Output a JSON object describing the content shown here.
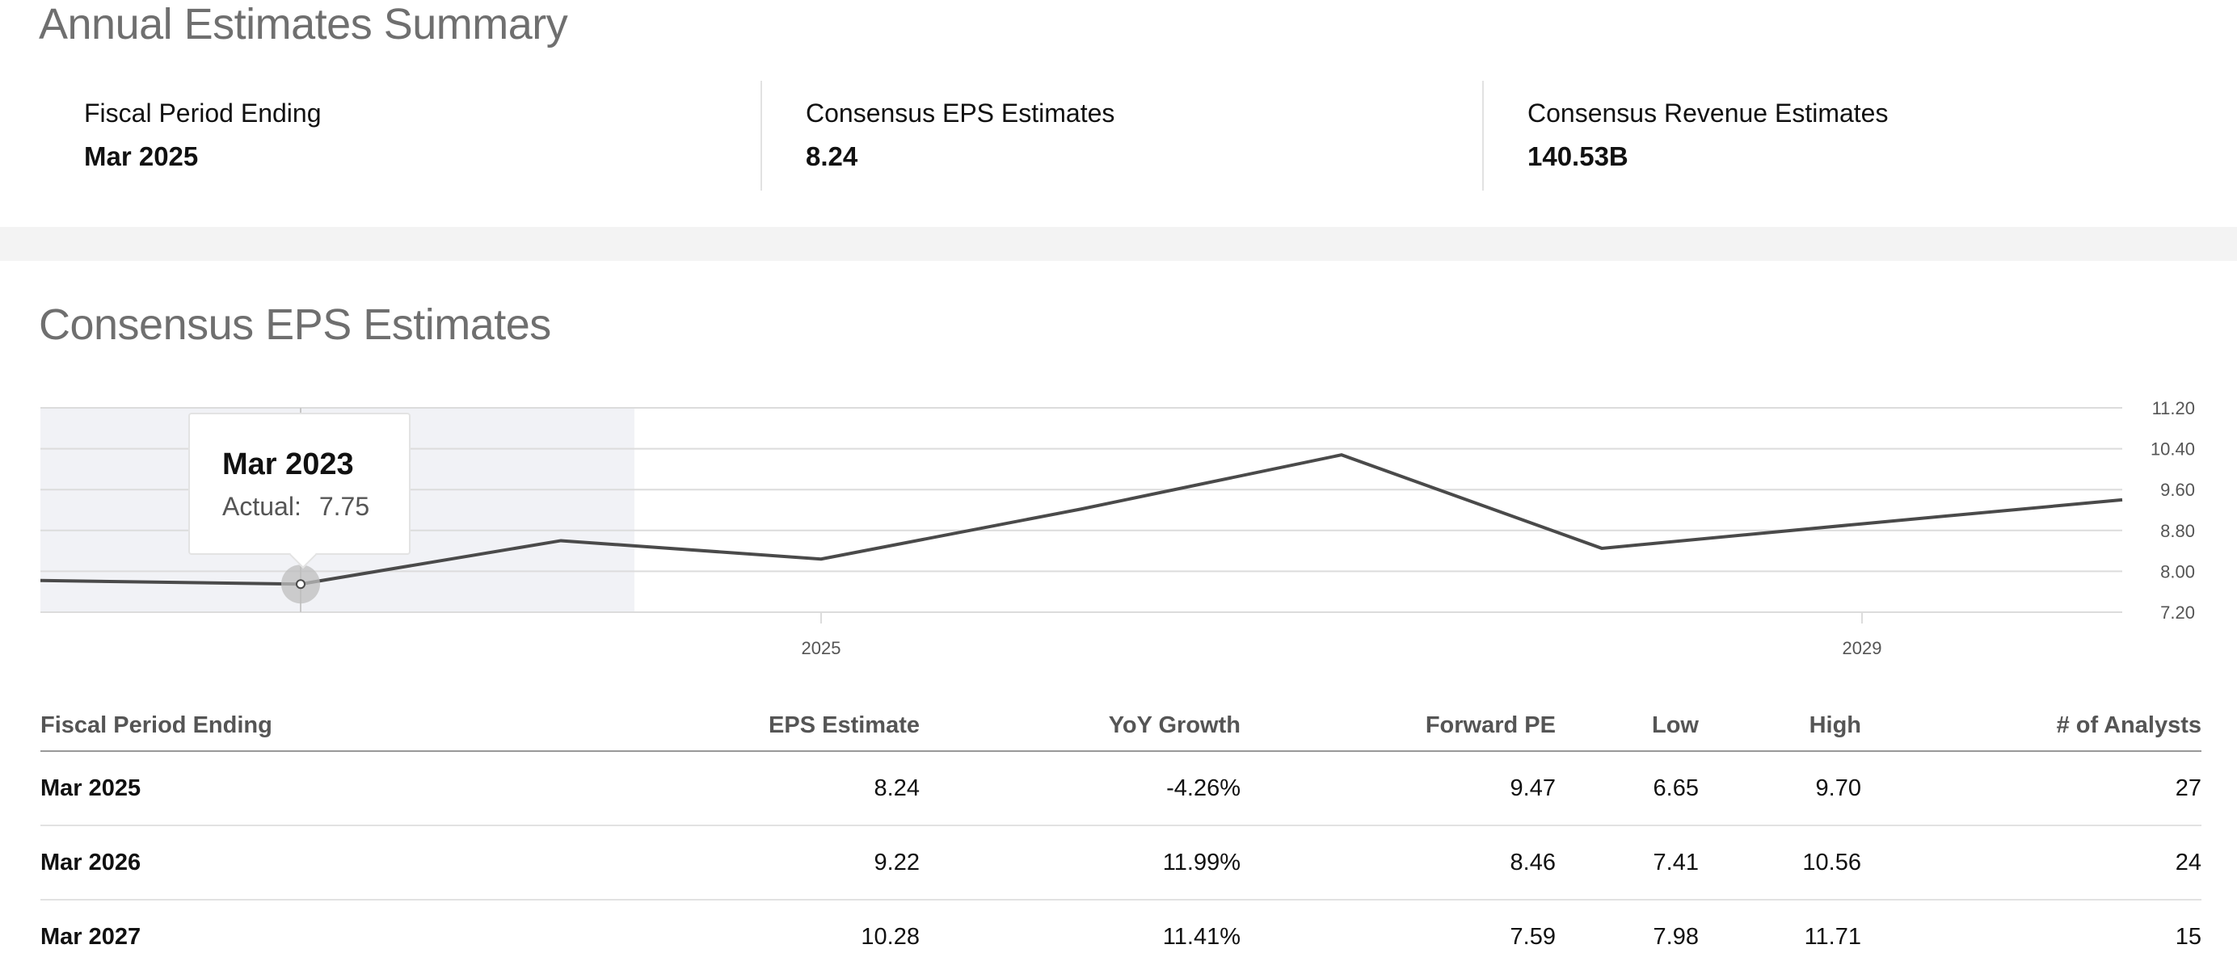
{
  "summary_section": {
    "title": "Annual Estimates Summary",
    "cards": [
      {
        "label": "Fiscal Period Ending",
        "value": "Mar 2025"
      },
      {
        "label": "Consensus EPS Estimates",
        "value": "8.24"
      },
      {
        "label": "Consensus Revenue Estimates",
        "value": "140.53B"
      }
    ]
  },
  "eps_section": {
    "title": "Consensus EPS Estimates",
    "tooltip": {
      "title": "Mar 2023",
      "label": "Actual:",
      "value": "7.75"
    }
  },
  "chart_data": {
    "type": "line",
    "title": "Consensus EPS Estimates",
    "x": [
      2022,
      2023,
      2024,
      2025,
      2026,
      2027,
      2028,
      2029,
      2030
    ],
    "series": [
      {
        "name": "EPS",
        "values": [
          7.82,
          7.75,
          8.6,
          8.24,
          9.22,
          10.28,
          8.45,
          8.93,
          9.4
        ]
      }
    ],
    "actual_range": [
      2022,
      2024
    ],
    "xticks": [
      2025,
      2029
    ],
    "xtick_labels": [
      "2025",
      "2029"
    ],
    "xlim": [
      2022,
      2030
    ],
    "ylim": [
      7.2,
      11.2
    ],
    "yticks": [
      7.2,
      8.0,
      8.8,
      9.6,
      10.4,
      11.2
    ],
    "ytick_labels": [
      "7.20",
      "8.00",
      "8.80",
      "9.60",
      "10.40",
      "11.20"
    ],
    "highlight_x": 2023,
    "grid": true,
    "xlabel": "",
    "ylabel": "",
    "line_color": "#4a4a4a",
    "grid_color": "#dcdcdc",
    "actual_band_color": "#f1f2f6"
  },
  "table": {
    "columns": [
      {
        "label": "Fiscal Period Ending",
        "align": "l"
      },
      {
        "label": "EPS Estimate",
        "align": "r"
      },
      {
        "label": "YoY Growth",
        "align": "r"
      },
      {
        "label": "Forward PE",
        "align": "r"
      },
      {
        "label": "Low",
        "align": "r"
      },
      {
        "label": "High",
        "align": "r"
      },
      {
        "label": "# of Analysts",
        "align": "r"
      }
    ],
    "rows": [
      [
        "Mar 2025",
        "8.24",
        "-4.26%",
        "9.47",
        "6.65",
        "9.70",
        "27"
      ],
      [
        "Mar 2026",
        "9.22",
        "11.99%",
        "8.46",
        "7.41",
        "10.56",
        "24"
      ],
      [
        "Mar 2027",
        "10.28",
        "11.41%",
        "7.59",
        "7.98",
        "11.71",
        "15"
      ]
    ]
  }
}
